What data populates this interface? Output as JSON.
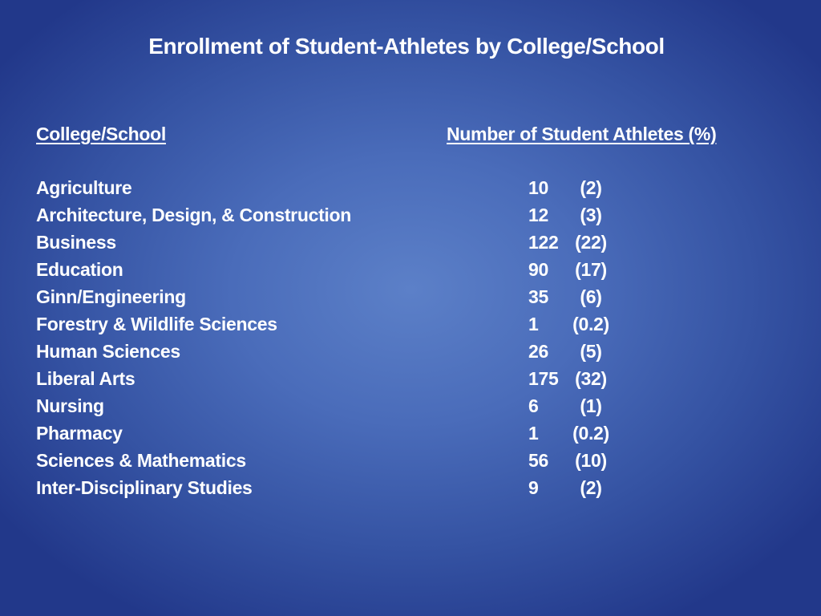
{
  "title": "Enrollment of Student-Athletes by College/School",
  "headers": {
    "college": "College/School",
    "number": "Number of Student Athletes (%)"
  },
  "rows": [
    {
      "name": "Agriculture",
      "count": "10",
      "pct": "(2)"
    },
    {
      "name": "Architecture, Design, & Construction",
      "count": "12",
      "pct": "(3)"
    },
    {
      "name": "Business",
      "count": "122",
      "pct": "(22)"
    },
    {
      "name": "Education",
      "count": "90",
      "pct": "(17)"
    },
    {
      "name": "Ginn/Engineering",
      "count": "35",
      "pct": "(6)"
    },
    {
      "name": "Forestry & Wildlife Sciences",
      "count": "1",
      "pct": "(0.2)"
    },
    {
      "name": "Human Sciences",
      "count": "26",
      "pct": "(5)"
    },
    {
      "name": "Liberal Arts",
      "count": "175",
      "pct": "(32)"
    },
    {
      "name": "Nursing",
      "count": "6",
      "pct": "(1)"
    },
    {
      "name": "Pharmacy",
      "count": "1",
      "pct": "(0.2)"
    },
    {
      "name": "Sciences & Mathematics",
      "count": "56",
      "pct": "(10)"
    },
    {
      "name": "Inter-Disciplinary Studies",
      "count": "9",
      "pct": "(2)"
    }
  ]
}
